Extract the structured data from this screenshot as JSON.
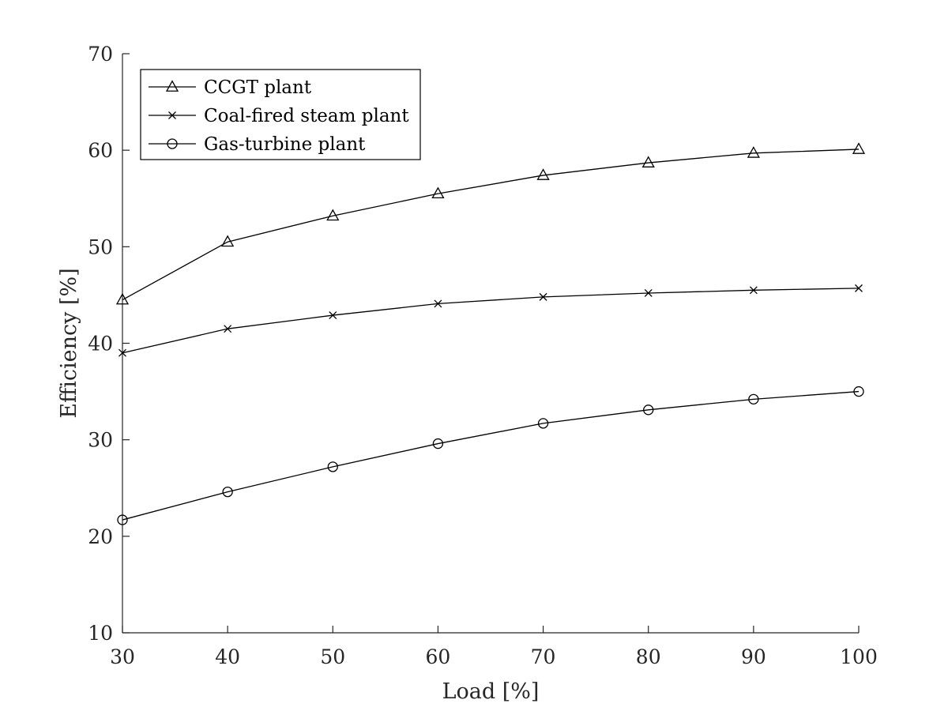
{
  "chart_data": {
    "type": "line",
    "title": "",
    "xlabel": "Load [%]",
    "ylabel": "Efficiency [%]",
    "xlim": [
      30,
      100
    ],
    "ylim": [
      10,
      70
    ],
    "xticks": [
      30,
      40,
      50,
      60,
      70,
      80,
      90,
      100
    ],
    "yticks": [
      10,
      20,
      30,
      40,
      50,
      60,
      70
    ],
    "grid": false,
    "legend_position": "top-left",
    "x": [
      30,
      40,
      50,
      60,
      70,
      80,
      90,
      100
    ],
    "series": [
      {
        "name": "CCGT plant",
        "marker": "triangle",
        "color": "#000000",
        "values": [
          44.5,
          50.5,
          53.2,
          55.5,
          57.4,
          58.7,
          59.7,
          60.1
        ]
      },
      {
        "name": "Coal-fired steam plant",
        "marker": "x",
        "color": "#000000",
        "values": [
          39.0,
          41.5,
          42.9,
          44.1,
          44.8,
          45.2,
          45.5,
          45.7
        ]
      },
      {
        "name": "Gas-turbine plant",
        "marker": "circle",
        "color": "#000000",
        "values": [
          21.7,
          24.6,
          27.2,
          29.6,
          31.7,
          33.1,
          34.2,
          35.0
        ]
      }
    ]
  }
}
